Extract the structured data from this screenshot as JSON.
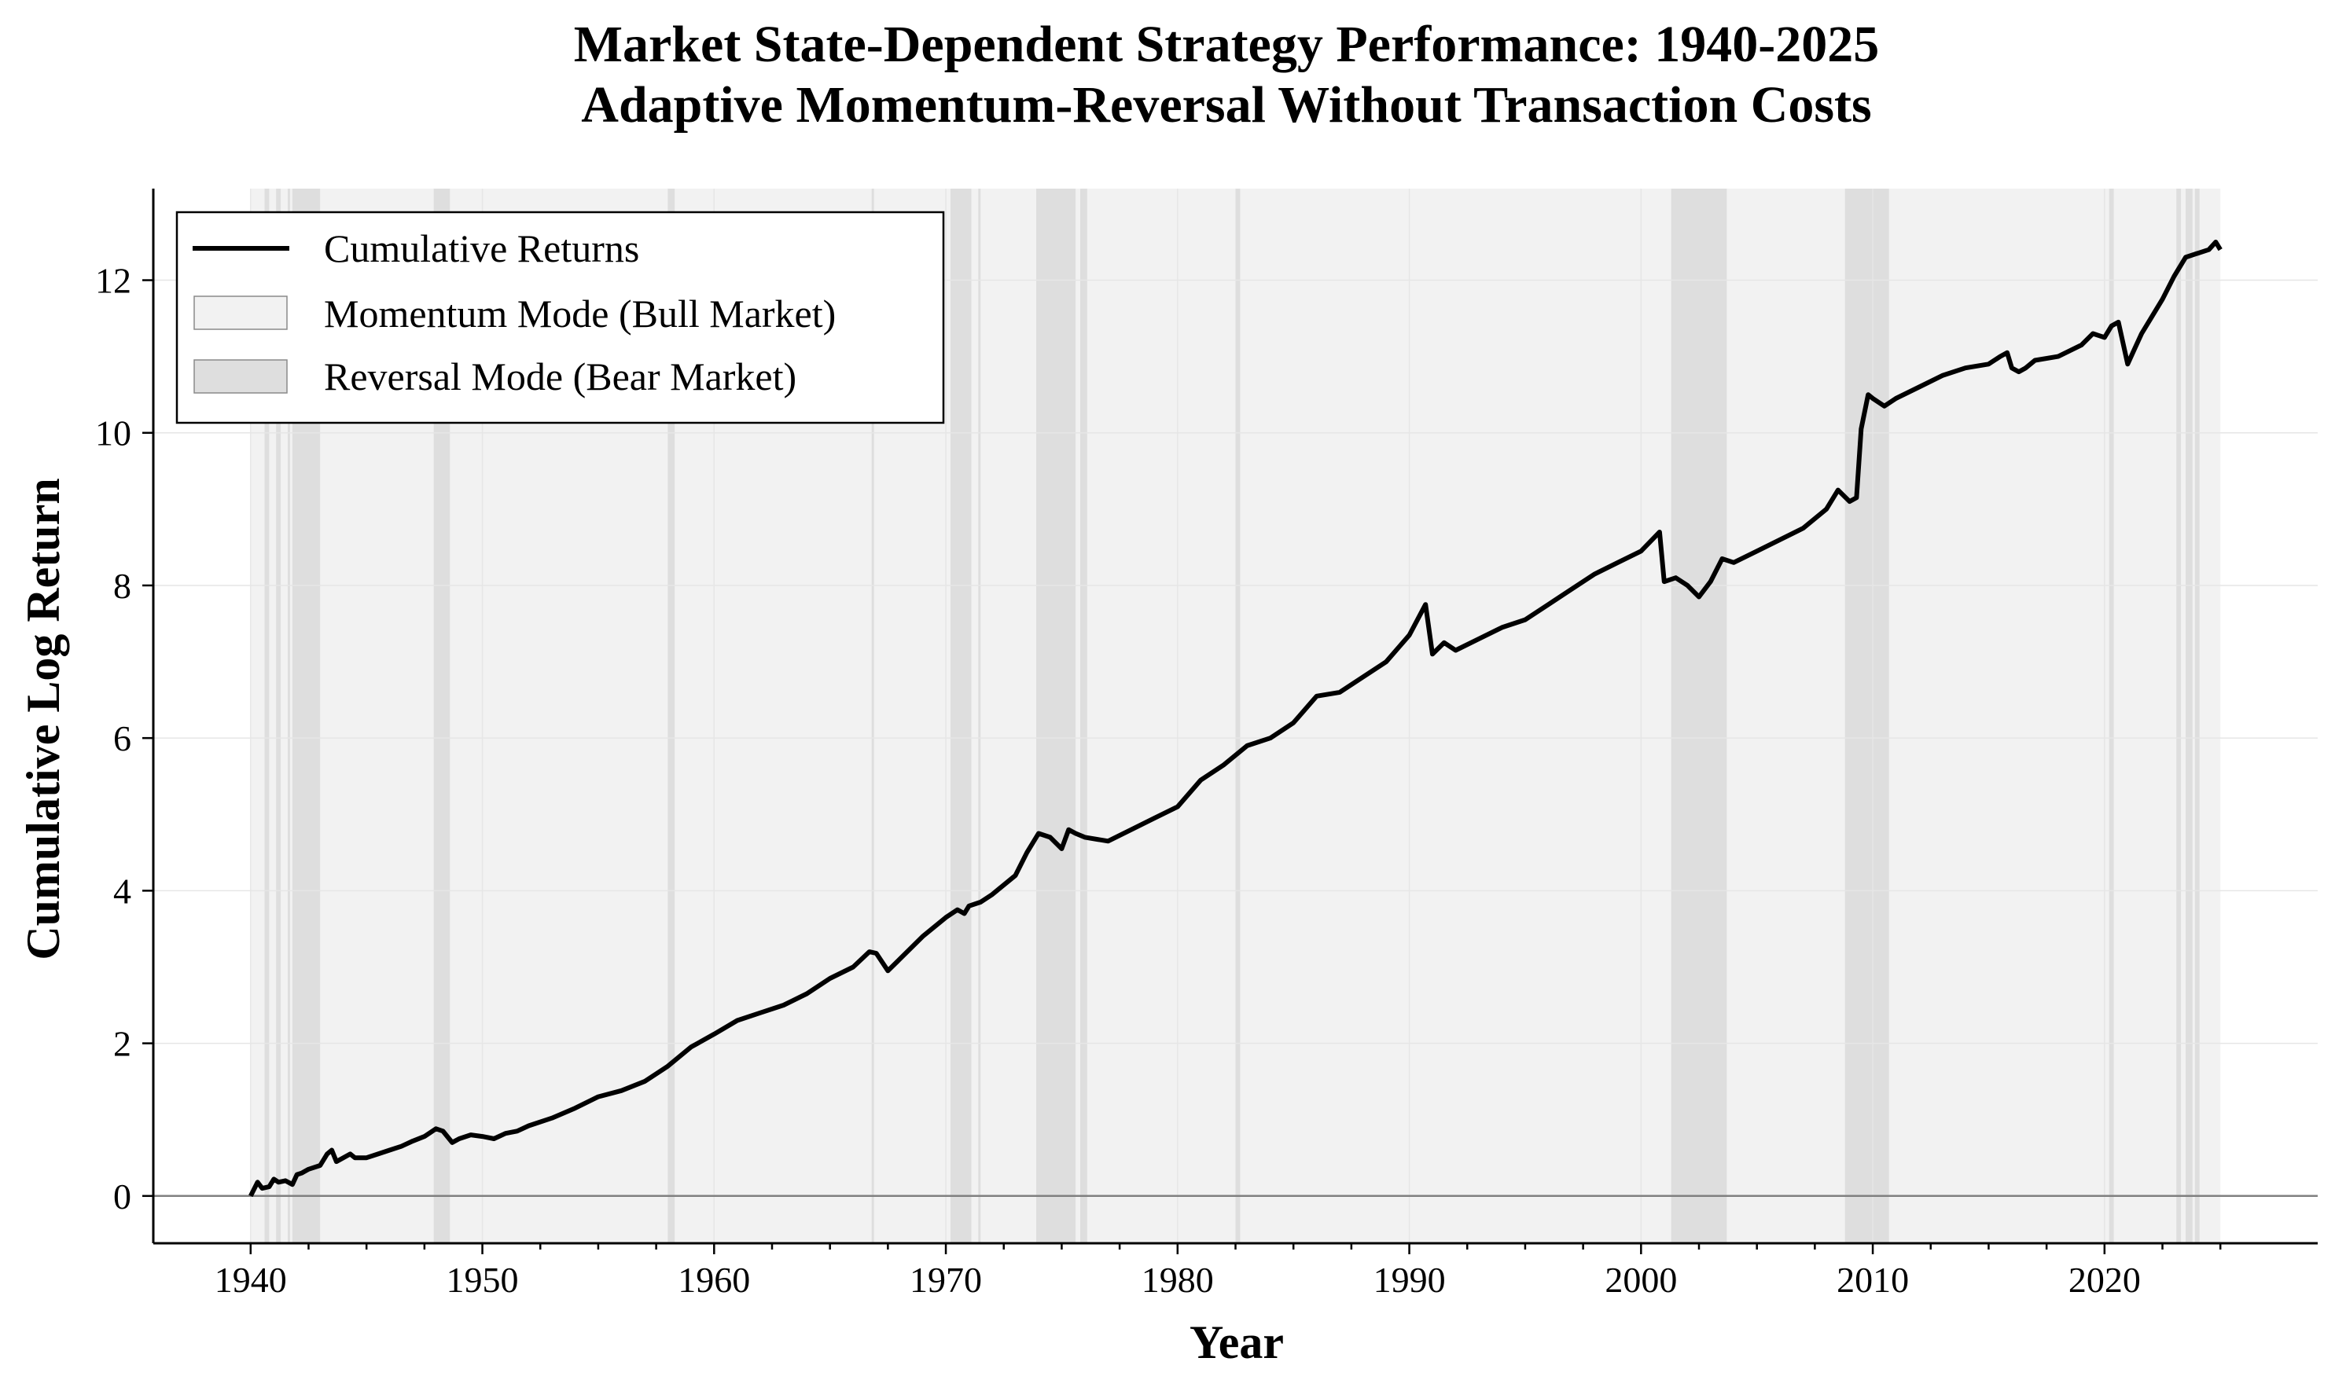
{
  "chart_data": {
    "type": "line",
    "title": "Market State-Dependent Strategy Performance: 1940-2025",
    "subtitle": "Adaptive Momentum-Reversal Without Transaction Costs",
    "xlabel": "Year",
    "ylabel": "Cumulative Log Return",
    "xlim": [
      1935.8,
      2029.2
    ],
    "ylim": [
      -0.62,
      13.2
    ],
    "x_ticks": [
      1940,
      1950,
      1960,
      1970,
      1980,
      1990,
      2000,
      2010,
      2020
    ],
    "y_ticks": [
      0,
      2,
      4,
      6,
      8,
      10,
      12
    ],
    "grid": true,
    "legend_position": "top-left",
    "legend": [
      "Cumulative Returns",
      "Momentum Mode (Bull Market)",
      "Reversal Mode (Bear Market)"
    ],
    "colors": {
      "line": "#000000",
      "bull_fill": "#f2f2f2",
      "bear_fill": "#dedede",
      "zero_line": "#808080",
      "grid": "#e6e6e6"
    },
    "bull_period": [
      1940.0,
      2025.0
    ],
    "bear_periods": [
      [
        1940.6,
        1940.8
      ],
      [
        1941.1,
        1941.3
      ],
      [
        1941.6,
        1941.7
      ],
      [
        1941.8,
        1943.0
      ],
      [
        1947.9,
        1948.6
      ],
      [
        1958.0,
        1958.3
      ],
      [
        1966.8,
        1966.9
      ],
      [
        1970.2,
        1971.1
      ],
      [
        1971.4,
        1971.5
      ],
      [
        1973.9,
        1975.6
      ],
      [
        1975.8,
        1976.1
      ],
      [
        1982.5,
        1982.7
      ],
      [
        2001.3,
        2003.7
      ],
      [
        2008.8,
        2010.7
      ],
      [
        2020.2,
        2020.4
      ],
      [
        2023.1,
        2023.3
      ],
      [
        2023.5,
        2023.8
      ],
      [
        2023.9,
        2024.1
      ]
    ],
    "series": [
      {
        "name": "Cumulative Returns",
        "x": [
          1940.0,
          1940.3,
          1940.5,
          1940.8,
          1941.0,
          1941.2,
          1941.5,
          1941.8,
          1942.0,
          1942.2,
          1942.5,
          1943.0,
          1943.3,
          1943.5,
          1943.7,
          1944.0,
          1944.3,
          1944.5,
          1945.0,
          1945.5,
          1946.0,
          1946.5,
          1947.0,
          1947.5,
          1948.0,
          1948.3,
          1948.7,
          1949.0,
          1949.5,
          1950.0,
          1950.5,
          1951.0,
          1951.5,
          1952.0,
          1953.0,
          1954.0,
          1955.0,
          1956.0,
          1957.0,
          1958.0,
          1959.0,
          1960.0,
          1961.0,
          1962.0,
          1963.0,
          1964.0,
          1965.0,
          1966.0,
          1966.7,
          1967.0,
          1967.5,
          1968.0,
          1969.0,
          1970.0,
          1970.5,
          1970.8,
          1971.0,
          1971.5,
          1972.0,
          1973.0,
          1973.5,
          1974.0,
          1974.5,
          1975.0,
          1975.3,
          1975.6,
          1976.0,
          1977.0,
          1978.0,
          1979.0,
          1980.0,
          1981.0,
          1982.0,
          1983.0,
          1984.0,
          1985.0,
          1986.0,
          1987.0,
          1988.0,
          1989.0,
          1990.0,
          1990.7,
          1991.0,
          1991.5,
          1992.0,
          1993.0,
          1994.0,
          1995.0,
          1996.0,
          1997.0,
          1998.0,
          1999.0,
          2000.0,
          2000.8,
          2001.0,
          2001.5,
          2002.0,
          2002.5,
          2003.0,
          2003.5,
          2004.0,
          2005.0,
          2006.0,
          2007.0,
          2008.0,
          2008.5,
          2009.0,
          2009.3,
          2009.5,
          2009.8,
          2010.0,
          2010.5,
          2011.0,
          2012.0,
          2013.0,
          2014.0,
          2015.0,
          2015.5,
          2015.8,
          2016.0,
          2016.3,
          2016.6,
          2017.0,
          2018.0,
          2019.0,
          2019.5,
          2020.0,
          2020.3,
          2020.6,
          2021.0,
          2021.3,
          2021.6,
          2022.0,
          2022.5,
          2023.0,
          2023.5,
          2024.0,
          2024.5,
          2024.8,
          2025.0
        ],
        "y": [
          0.0,
          0.18,
          0.1,
          0.12,
          0.22,
          0.18,
          0.2,
          0.15,
          0.28,
          0.3,
          0.35,
          0.4,
          0.55,
          0.6,
          0.45,
          0.5,
          0.55,
          0.5,
          0.5,
          0.55,
          0.6,
          0.65,
          0.72,
          0.78,
          0.88,
          0.85,
          0.7,
          0.75,
          0.8,
          0.78,
          0.75,
          0.82,
          0.85,
          0.92,
          1.02,
          1.15,
          1.3,
          1.38,
          1.5,
          1.7,
          1.95,
          2.12,
          2.3,
          2.4,
          2.5,
          2.65,
          2.85,
          3.0,
          3.2,
          3.18,
          2.95,
          3.1,
          3.4,
          3.65,
          3.75,
          3.7,
          3.8,
          3.85,
          3.95,
          4.2,
          4.5,
          4.75,
          4.7,
          4.55,
          4.8,
          4.75,
          4.7,
          4.65,
          4.8,
          4.95,
          5.1,
          5.45,
          5.65,
          5.9,
          6.0,
          6.2,
          6.55,
          6.6,
          6.8,
          7.0,
          7.35,
          7.75,
          7.1,
          7.25,
          7.15,
          7.3,
          7.45,
          7.55,
          7.75,
          7.95,
          8.15,
          8.3,
          8.45,
          8.7,
          8.05,
          8.1,
          8.0,
          7.85,
          8.05,
          8.35,
          8.3,
          8.45,
          8.6,
          8.75,
          9.0,
          9.25,
          9.1,
          9.15,
          10.05,
          10.5,
          10.45,
          10.35,
          10.45,
          10.6,
          10.75,
          10.85,
          10.9,
          11.0,
          11.05,
          10.85,
          10.8,
          10.85,
          10.95,
          11.0,
          11.15,
          11.3,
          11.25,
          11.4,
          11.45,
          10.9,
          11.1,
          11.3,
          11.5,
          11.75,
          12.05,
          12.3,
          12.35,
          12.4,
          12.5,
          12.4
        ]
      }
    ]
  }
}
